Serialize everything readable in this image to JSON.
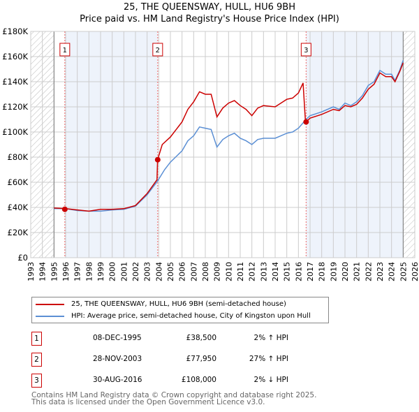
{
  "chart_data": {
    "type": "line",
    "title": "25, THE QUEENSWAY, HULL, HU6 9BH",
    "subtitle": "Price paid vs. HM Land Registry's House Price Index (HPI)",
    "xlim": [
      1993,
      2026
    ],
    "ylim": [
      0,
      180000
    ],
    "x_ticks": [
      "1993",
      "1994",
      "1995",
      "1996",
      "1997",
      "1998",
      "1999",
      "2000",
      "2001",
      "2002",
      "2003",
      "2004",
      "2005",
      "2006",
      "2007",
      "2008",
      "2009",
      "2010",
      "2011",
      "2012",
      "2013",
      "2014",
      "2015",
      "2016",
      "2017",
      "2018",
      "2019",
      "2020",
      "2021",
      "2022",
      "2023",
      "2024",
      "2025",
      "2026"
    ],
    "y_ticks": [
      {
        "v": 0,
        "label": "£0"
      },
      {
        "v": 20000,
        "label": "£20K"
      },
      {
        "v": 40000,
        "label": "£40K"
      },
      {
        "v": 60000,
        "label": "£60K"
      },
      {
        "v": 80000,
        "label": "£80K"
      },
      {
        "v": 100000,
        "label": "£100K"
      },
      {
        "v": 120000,
        "label": "£120K"
      },
      {
        "v": 140000,
        "label": "£140K"
      },
      {
        "v": 160000,
        "label": "£160K"
      },
      {
        "v": 180000,
        "label": "£180K"
      }
    ],
    "grid": true,
    "hatched_ranges": [
      [
        1993,
        1995
      ],
      [
        2025,
        2026
      ]
    ],
    "shaded_ranges": [
      [
        1995.93,
        2003.91
      ],
      [
        2016.66,
        2025
      ]
    ],
    "series": [
      {
        "name": "25, THE QUEENSWAY, HULL, HU6 9BH (semi-detached house)",
        "color": "#cc0000",
        "x": [
          1995,
          1996,
          1997,
          1998,
          1999,
          2000,
          2001,
          2002,
          2003,
          2003.85,
          2003.9,
          2004.3,
          2005,
          2006,
          2006.5,
          2007,
          2007.5,
          2008,
          2008.5,
          2009,
          2009.5,
          2010,
          2010.5,
          2011,
          2011.5,
          2012,
          2012.5,
          2013,
          2014,
          2014.5,
          2015,
          2015.5,
          2016,
          2016.4,
          2016.6,
          2016.66,
          2017,
          2018,
          2019,
          2019.5,
          2020,
          2020.5,
          2021,
          2021.5,
          2022,
          2022.5,
          2023,
          2023.5,
          2024,
          2024.3,
          2024.7,
          2025
        ],
        "y": [
          39500,
          39000,
          38000,
          37000,
          38500,
          38500,
          39000,
          41500,
          51000,
          62000,
          78000,
          90000,
          96000,
          108000,
          118000,
          124000,
          132000,
          130000,
          130000,
          112000,
          119000,
          123000,
          125000,
          121000,
          118000,
          113000,
          119000,
          121000,
          120000,
          123000,
          126000,
          127000,
          131000,
          139000,
          109000,
          108000,
          111000,
          114000,
          118000,
          117000,
          121000,
          120000,
          122000,
          127000,
          134000,
          138000,
          147000,
          144000,
          144000,
          140000,
          148000,
          155000
        ]
      },
      {
        "name": "HPI: Average price, semi-detached house, City of Kingston upon Hull",
        "color": "#5b8fd4",
        "x": [
          1995,
          1996,
          1997,
          1998,
          1999,
          2000,
          2001,
          2002,
          2003,
          2003.9,
          2004.5,
          2005,
          2006,
          2006.5,
          2007,
          2007.5,
          2008,
          2008.5,
          2009,
          2009.5,
          2010,
          2010.5,
          2011,
          2011.5,
          2012,
          2012.5,
          2013,
          2014,
          2014.5,
          2015,
          2015.5,
          2016,
          2016.66,
          2017,
          2018,
          2019,
          2019.5,
          2020,
          2020.5,
          2021,
          2021.5,
          2022,
          2022.5,
          2023,
          2023.5,
          2024,
          2024.3,
          2024.7,
          2025
        ],
        "y": [
          39000,
          39000,
          37500,
          37000,
          37000,
          38000,
          38500,
          41000,
          50000,
          61000,
          70000,
          76000,
          85000,
          93000,
          97000,
          104000,
          103000,
          102000,
          88000,
          94000,
          97000,
          99000,
          95000,
          93000,
          90000,
          94000,
          95000,
          95000,
          97000,
          99000,
          100000,
          103000,
          110000,
          113000,
          116000,
          120000,
          118000,
          123000,
          121000,
          124000,
          129000,
          137000,
          140000,
          149000,
          146000,
          146000,
          141000,
          149000,
          157000
        ]
      }
    ],
    "sales": [
      {
        "label": "1",
        "x": 1995.93,
        "y": 38500,
        "date": "08-DEC-1995",
        "price": "£38,500",
        "hpi": "2% ↑ HPI"
      },
      {
        "label": "2",
        "x": 2003.91,
        "y": 77950,
        "date": "28-NOV-2003",
        "price": "£77,950",
        "hpi": "27% ↑ HPI"
      },
      {
        "label": "3",
        "x": 2016.66,
        "y": 108000,
        "date": "30-AUG-2016",
        "price": "£108,000",
        "hpi": "2% ↓ HPI"
      }
    ]
  },
  "footer": {
    "line1": "Contains HM Land Registry data © Crown copyright and database right 2025.",
    "line2": "This data is licensed under the Open Government Licence v3.0."
  }
}
